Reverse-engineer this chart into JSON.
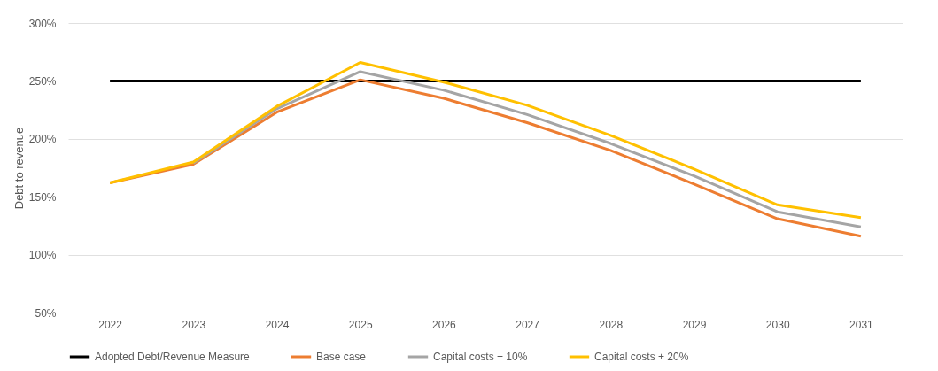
{
  "chart_data": {
    "type": "line",
    "ylabel": "Debt to revenue",
    "categories": [
      "2022",
      "2023",
      "2024",
      "2025",
      "2026",
      "2027",
      "2028",
      "2029",
      "2030",
      "2031"
    ],
    "series": [
      {
        "name": "Adopted Debt/Revenue Measure",
        "color": "#000000",
        "values": [
          250,
          250,
          250,
          250,
          250,
          250,
          250,
          250,
          250,
          250
        ]
      },
      {
        "name": "Base case",
        "color": "#ed7d31",
        "values": [
          162,
          178,
          223,
          251,
          235,
          214,
          190,
          161,
          131,
          116
        ]
      },
      {
        "name": "Capital costs + 10%",
        "color": "#a5a5a5",
        "values": [
          null,
          179,
          226,
          258,
          242,
          221,
          196,
          168,
          137,
          124
        ]
      },
      {
        "name": "Capital costs + 20%",
        "color": "#ffc000",
        "values": [
          162,
          180,
          228,
          266,
          249,
          229,
          203,
          174,
          143,
          132
        ]
      }
    ],
    "ylim": [
      50,
      300
    ],
    "yticks": [
      {
        "value": 50,
        "label": "50%"
      },
      {
        "value": 100,
        "label": "100%"
      },
      {
        "value": 150,
        "label": "150%"
      },
      {
        "value": 200,
        "label": "200%"
      },
      {
        "value": 250,
        "label": "250%"
      },
      {
        "value": 300,
        "label": "300%"
      }
    ],
    "grid": "y",
    "legend": "bottom",
    "marker": "none",
    "line_style": "solid"
  }
}
